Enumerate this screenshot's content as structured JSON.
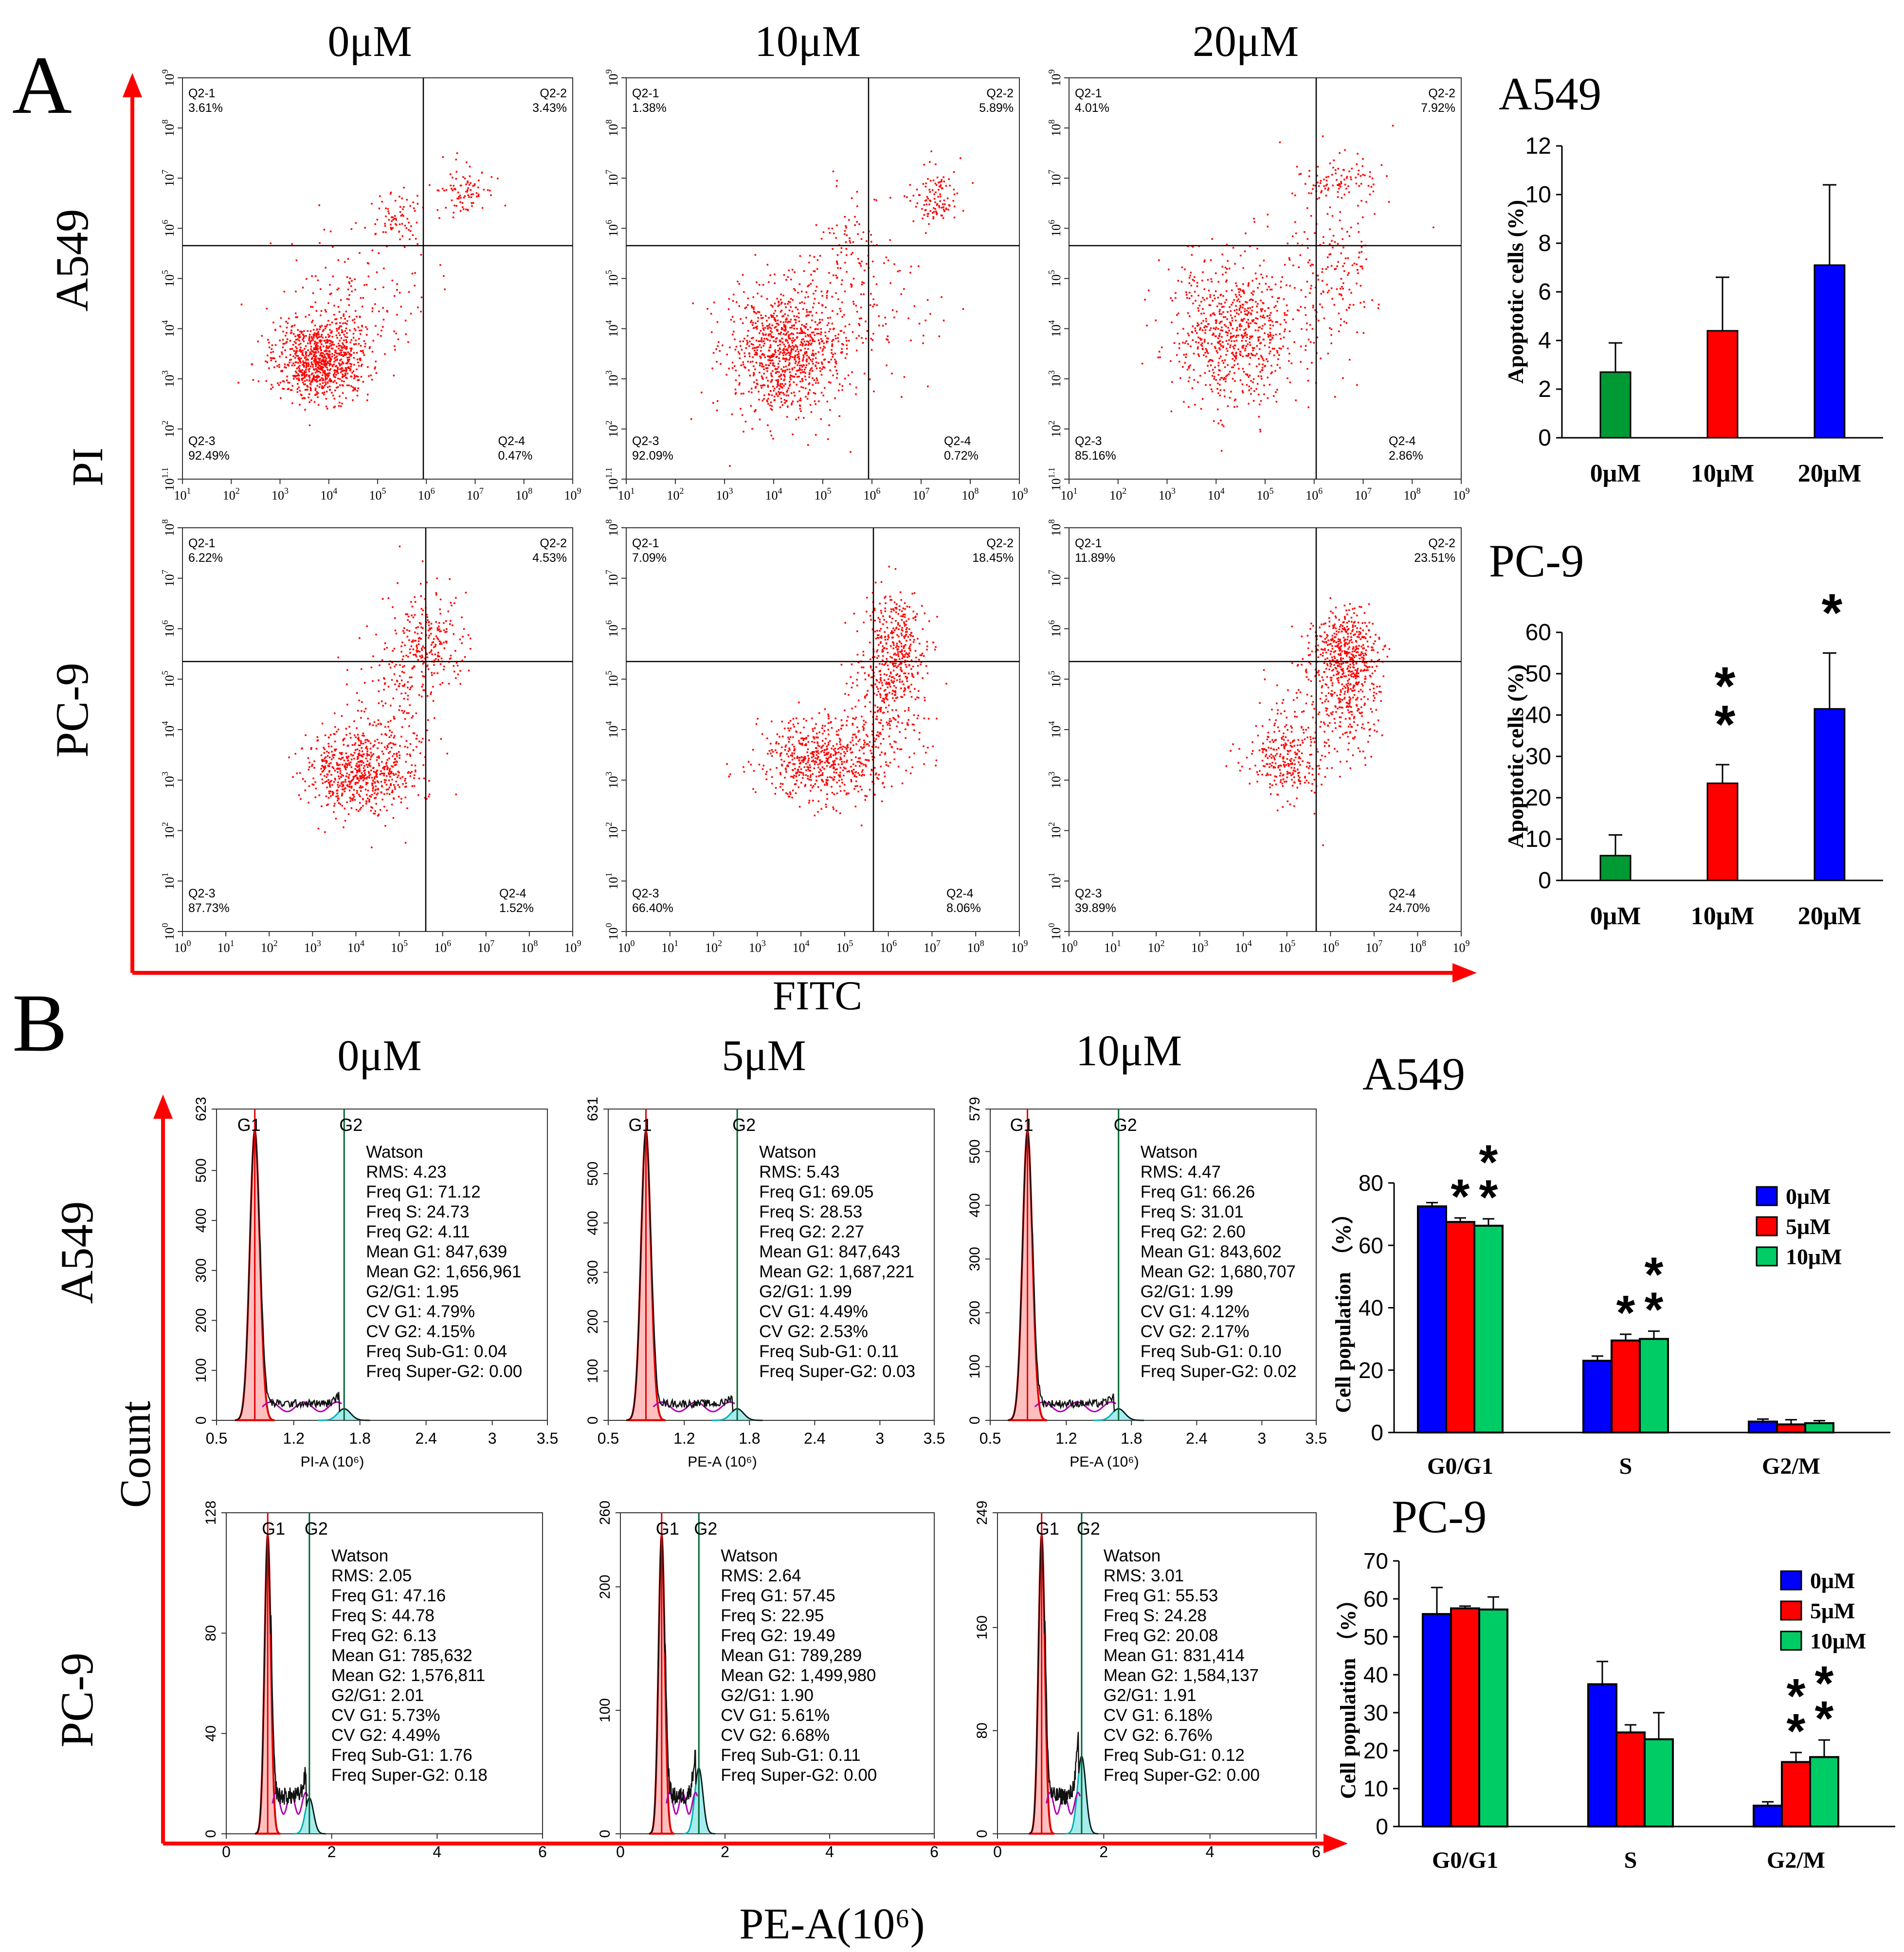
{
  "panel_letters": {
    "a": "A",
    "b": "B"
  },
  "colors": {
    "axis_red": "#ff0000",
    "dot_red": "#ff0000",
    "blue": "#0000ff",
    "green": "#009933",
    "red_bar": "#ff0000"
  },
  "section_a": {
    "col_titles": [
      "0μM",
      "10μM",
      "20μM"
    ],
    "row_labels": [
      "A549",
      "PC-9"
    ],
    "y_axis_label": "PI",
    "x_axis_label": "FITC",
    "quad_names": {
      "q1": "Q2-1",
      "q2": "Q2-2",
      "q3": "Q2-3",
      "q4": "Q2-4"
    },
    "x_ticks_row1": [
      "10^1",
      "10^2",
      "10^3",
      "10^4",
      "10^5",
      "10^6",
      "10^7",
      "10^8",
      "10^9"
    ],
    "y_ticks_row1": [
      "10^1.1",
      "10^2",
      "10^3",
      "10^4",
      "10^5",
      "10^6",
      "10^7",
      "10^8",
      "10^9"
    ],
    "x_ticks_row2": [
      "10^0",
      "10^1",
      "10^2",
      "10^3",
      "10^4",
      "10^5",
      "10^6",
      "10^7",
      "10^8",
      "10^9"
    ],
    "y_ticks_row2": [
      "10^0",
      "10^1",
      "10^2",
      "10^3",
      "10^4",
      "10^5",
      "10^6",
      "10^7",
      "10^8"
    ],
    "plots": [
      {
        "q1": "3.61%",
        "q2": "3.43%",
        "q3": "92.49%",
        "q4": "0.47%"
      },
      {
        "q1": "1.38%",
        "q2": "5.89%",
        "q3": "92.09%",
        "q4": "0.72%"
      },
      {
        "q1": "4.01%",
        "q2": "7.92%",
        "q3": "85.16%",
        "q4": "2.86%"
      },
      {
        "q1": "6.22%",
        "q2": "4.53%",
        "q3": "87.73%",
        "q4": "1.52%"
      },
      {
        "q1": "7.09%",
        "q2": "18.45%",
        "q3": "66.40%",
        "q4": "8.06%"
      },
      {
        "q1": "11.89%",
        "q2": "23.51%",
        "q3": "39.89%",
        "q4": "24.70%"
      }
    ]
  },
  "section_b": {
    "col_titles": [
      "0μM",
      "5μM",
      "10μM"
    ],
    "row_labels": [
      "A549",
      "PC-9"
    ],
    "y_axis_label": "Count",
    "x_axis_label": "PE-A(10⁶)",
    "g1_label": "G1",
    "g2_label": "G2",
    "row1_x_ticks": [
      "0.5",
      "1.2",
      "1.8",
      "2.4",
      "3",
      "3.5"
    ],
    "row2_x_ticks": [
      "0",
      "2",
      "4",
      "6"
    ],
    "x_labels": [
      "PI-A (10⁶)",
      "PE-A (10⁶)",
      "PE-A (10⁶)"
    ],
    "histograms": [
      {
        "y_ticks": [
          "0",
          "100",
          "200",
          "300",
          "400",
          "500",
          "623"
        ],
        "stats": [
          "Watson",
          "RMS: 4.23",
          "Freq G1: 71.12",
          "Freq S: 24.73",
          "Freq G2: 4.11",
          "Mean G1: 847,639",
          "Mean G2: 1,656,961",
          "G2/G1: 1.95",
          "CV G1: 4.79%",
          "CV G2: 4.15%",
          "Freq Sub-G1: 0.04",
          "Freq Super-G2: 0.00"
        ]
      },
      {
        "y_ticks": [
          "0",
          "100",
          "200",
          "300",
          "400",
          "500",
          "631"
        ],
        "stats": [
          "Watson",
          "RMS: 5.43",
          "Freq G1: 69.05",
          "Freq S: 28.53",
          "Freq G2: 2.27",
          "Mean G1: 847,643",
          "Mean G2: 1,687,221",
          "G2/G1: 1.99",
          "CV G1: 4.49%",
          "CV G2: 2.53%",
          "Freq Sub-G1: 0.11",
          "Freq Super-G2: 0.03"
        ]
      },
      {
        "y_ticks": [
          "0",
          "100",
          "200",
          "300",
          "400",
          "500",
          "579"
        ],
        "stats": [
          "Watson",
          "RMS: 4.47",
          "Freq G1: 66.26",
          "Freq S: 31.01",
          "Freq G2: 2.60",
          "Mean G1: 843,602",
          "Mean G2: 1,680,707",
          "G2/G1: 1.99",
          "CV G1: 4.12%",
          "CV G2: 2.17%",
          "Freq Sub-G1: 0.10",
          "Freq Super-G2: 0.02"
        ]
      },
      {
        "y_ticks": [
          "0",
          "40",
          "80",
          "128"
        ],
        "stats": [
          "Watson",
          "RMS: 2.05",
          "Freq G1: 47.16",
          "Freq S: 44.78",
          "Freq G2: 6.13",
          "Mean G1: 785,632",
          "Mean G2: 1,576,811",
          "G2/G1: 2.01",
          "CV G1: 5.73%",
          "CV G2: 4.49%",
          "Freq Sub-G1: 1.76",
          "Freq Super-G2: 0.18"
        ]
      },
      {
        "y_ticks": [
          "0",
          "100",
          "200",
          "260"
        ],
        "stats": [
          "Watson",
          "RMS: 2.64",
          "Freq G1: 57.45",
          "Freq S: 22.95",
          "Freq G2: 19.49",
          "Mean G1: 789,289",
          "Mean G2: 1,499,980",
          "G2/G1: 1.90",
          "CV G1: 5.61%",
          "CV G2: 6.68%",
          "Freq Sub-G1: 0.11",
          "Freq Super-G2: 0.00"
        ]
      },
      {
        "y_ticks": [
          "0",
          "80",
          "160",
          "249"
        ],
        "stats": [
          "Watson",
          "RMS: 3.01",
          "Freq G1: 55.53",
          "Freq S: 24.28",
          "Freq G2: 20.08",
          "Mean G1: 831,414",
          "Mean G2: 1,584,137",
          "G2/G1: 1.91",
          "CV G1: 6.18%",
          "CV G2: 6.76%",
          "Freq Sub-G1: 0.12",
          "Freq Super-G2: 0.00"
        ]
      }
    ]
  },
  "chart_data": [
    {
      "type": "bar",
      "title": "A549",
      "categories": [
        "0μM",
        "10μM",
        "20μM"
      ],
      "values": [
        2.7,
        4.4,
        7.1
      ],
      "errors": [
        1.2,
        2.2,
        3.3
      ],
      "ylabel": "Apoptotic cells (%)",
      "ylim": [
        0,
        12
      ],
      "yticks": [
        "0",
        "2",
        "4",
        "6",
        "8",
        "10",
        "12"
      ],
      "colors": [
        "#009933",
        "#ff0000",
        "#0000ff"
      ],
      "significance": [
        "",
        "",
        ""
      ]
    },
    {
      "type": "bar",
      "title": "PC-9",
      "categories": [
        "0μM",
        "10μM",
        "20μM"
      ],
      "values": [
        6,
        23.5,
        41.5
      ],
      "errors": [
        5,
        4.5,
        13.5
      ],
      "ylabel": "Apoptotic cells (%)",
      "ylim": [
        0,
        60
      ],
      "yticks": [
        "0",
        "10",
        "20",
        "30",
        "40",
        "50",
        "60"
      ],
      "colors": [
        "#009933",
        "#ff0000",
        "#0000ff"
      ],
      "significance": [
        "",
        "**",
        "*"
      ]
    },
    {
      "type": "bar",
      "title": "A549",
      "categories": [
        "G0/G1",
        "S",
        "G2/M"
      ],
      "ylabel": "Cell population （%）",
      "ylim": [
        0,
        80
      ],
      "yticks": [
        "0",
        "20",
        "40",
        "60",
        "80"
      ],
      "series": [
        {
          "name": "0μM",
          "color": "#0000ff",
          "values": [
            72.5,
            23,
            3.5
          ],
          "errors": [
            1.2,
            1.5,
            0.8
          ]
        },
        {
          "name": "5μM",
          "color": "#ff0000",
          "values": [
            67.5,
            29.5,
            2.6
          ],
          "errors": [
            1.3,
            2,
            1.5
          ]
        },
        {
          "name": "10μM",
          "color": "#00cc66",
          "values": [
            66.3,
            30,
            3
          ]
        }
      ],
      "errors10": [
        2.2,
        2.5,
        0.8
      ],
      "significance": [
        [
          "",
          "*",
          "**"
        ],
        [
          "",
          "*",
          "**"
        ],
        [
          "",
          "",
          ""
        ]
      ]
    },
    {
      "type": "bar",
      "title": "PC-9",
      "categories": [
        "G0/G1",
        "S",
        "G2/M"
      ],
      "ylabel": "Cell population （%）",
      "ylim": [
        0,
        70
      ],
      "yticks": [
        "0",
        "10",
        "20",
        "30",
        "40",
        "50",
        "60",
        "70"
      ],
      "series": [
        {
          "name": "0μM",
          "color": "#0000ff",
          "values": [
            56,
            37.5,
            5.5
          ],
          "errors": [
            7,
            6,
            1
          ]
        },
        {
          "name": "5μM",
          "color": "#ff0000",
          "values": [
            57.5,
            24.8,
            17
          ],
          "errors": [
            0.6,
            2,
            2.5
          ]
        },
        {
          "name": "10μM",
          "color": "#00cc66",
          "values": [
            57.2,
            23,
            18.3
          ]
        }
      ],
      "errors10": [
        3.3,
        7,
        4.5
      ],
      "significance": [
        [
          "",
          "",
          ""
        ],
        [
          "",
          "",
          ""
        ],
        [
          "",
          "**",
          "**"
        ]
      ]
    }
  ]
}
